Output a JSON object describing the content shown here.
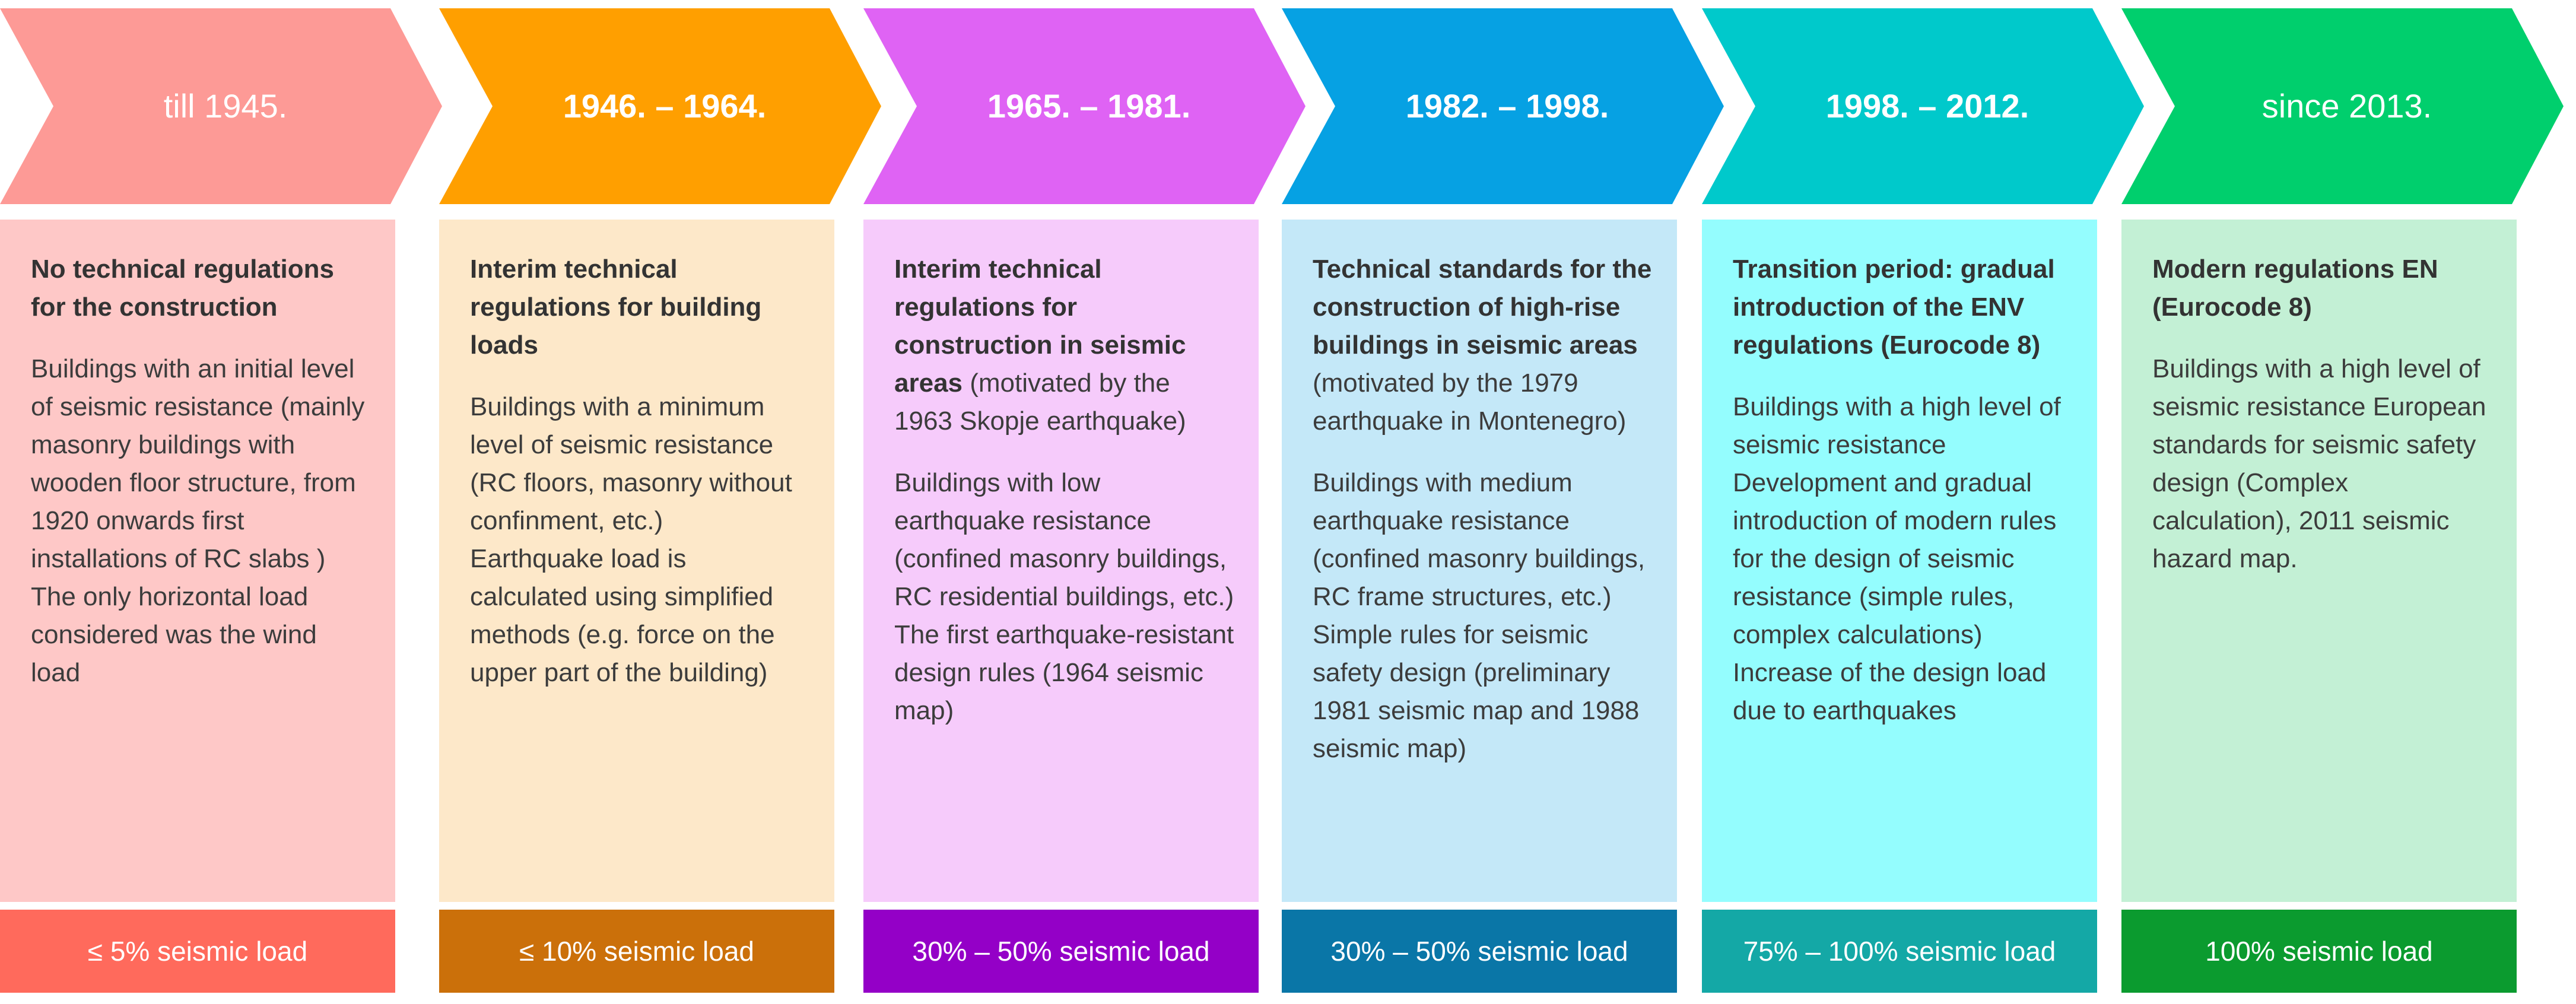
{
  "periods": [
    {
      "label": "till 1945.",
      "label_bold": false,
      "colors": {
        "chevron": "#fd9a96",
        "card": "#fec8c7",
        "footer": "#ff6a5c"
      },
      "title": "No technical regulations for the construction",
      "title_suffix": "",
      "paragraphs": [
        "Buildings with an initial level of seismic resistance (mainly masonry buildings with wooden floor structure, from 1920 onwards first installations of RC slabs )\nThe only horizontal load considered was the wind load"
      ],
      "footer": "≤ 5% seismic load"
    },
    {
      "label": "1946. – 1964.",
      "label_bold": true,
      "colors": {
        "chevron": "#ff9f00",
        "card": "#fde8c9",
        "footer": "#cb700a"
      },
      "title": "Interim technical regulations for building loads",
      "title_suffix": "",
      "paragraphs": [
        "Buildings with a minimum level of seismic resistance (RC floors, masonry without confinment, etc.)\nEarthquake load is calculated using simplified methods (e.g. force on the upper part of the building)"
      ],
      "footer": "≤ 10% seismic load"
    },
    {
      "label": "1965. – 1981.",
      "label_bold": true,
      "colors": {
        "chevron": "#df63f4",
        "card": "#f6cbfb",
        "footer": "#9400c7"
      },
      "title": "Interim technical regulations for construction in seismic areas",
      "title_suffix": " (motivated by the 1963 Skopje earthquake)",
      "paragraphs": [
        "Buildings with low earthquake resistance (confined masonry buildings, RC residential buildings, etc.)\nThe first  earthquake-resistant design rules (1964 seismic map)"
      ],
      "footer": "30% – 50% seismic load"
    },
    {
      "label": "1982. – 1998.",
      "label_bold": true,
      "colors": {
        "chevron": "#06a1e3",
        "card": "#c4e8f8",
        "footer": "#0a76a7"
      },
      "title": "Technical standards for the construction of high-rise buildings in seismic areas",
      "title_suffix": " (motivated by the 1979 earthquake in Montenegro)",
      "paragraphs": [
        "Buildings with medium earthquake resistance (confined masonry buildings, RC frame structures, etc.)\nSimple rules for seismic safety design (preliminary 1981 seismic map and 1988 seismic map)"
      ],
      "footer": "30% – 50% seismic load"
    },
    {
      "label": "1998. – 2012.",
      "label_bold": true,
      "colors": {
        "chevron": "#00c9cb",
        "card": "#94fdfe",
        "footer": "#14a8a6"
      },
      "title": "Transition period: gradual introduction of the ENV regulations (Eurocode 8)",
      "title_suffix": "",
      "paragraphs": [
        "Buildings with a high level of seismic resistance\nDevelopment and gradual introduction of modern rules for the design of seismic resistance (simple rules, complex calculations)\nIncrease of the design load due to earthquakes"
      ],
      "footer": "75% – 100% seismic load"
    },
    {
      "label": "since 2013.",
      "label_bold": false,
      "colors": {
        "chevron": "#00cf6d",
        "card": "#c3f0d5",
        "footer": "#0b9b2f"
      },
      "title": "Modern regulations EN (Eurocode 8)",
      "title_suffix": "",
      "paragraphs": [
        "Buildings with a high level of seismic resistance European standards for seismic safety design (Complex calculation), 2011 seismic hazard map."
      ],
      "footer": "100% seismic load"
    }
  ]
}
